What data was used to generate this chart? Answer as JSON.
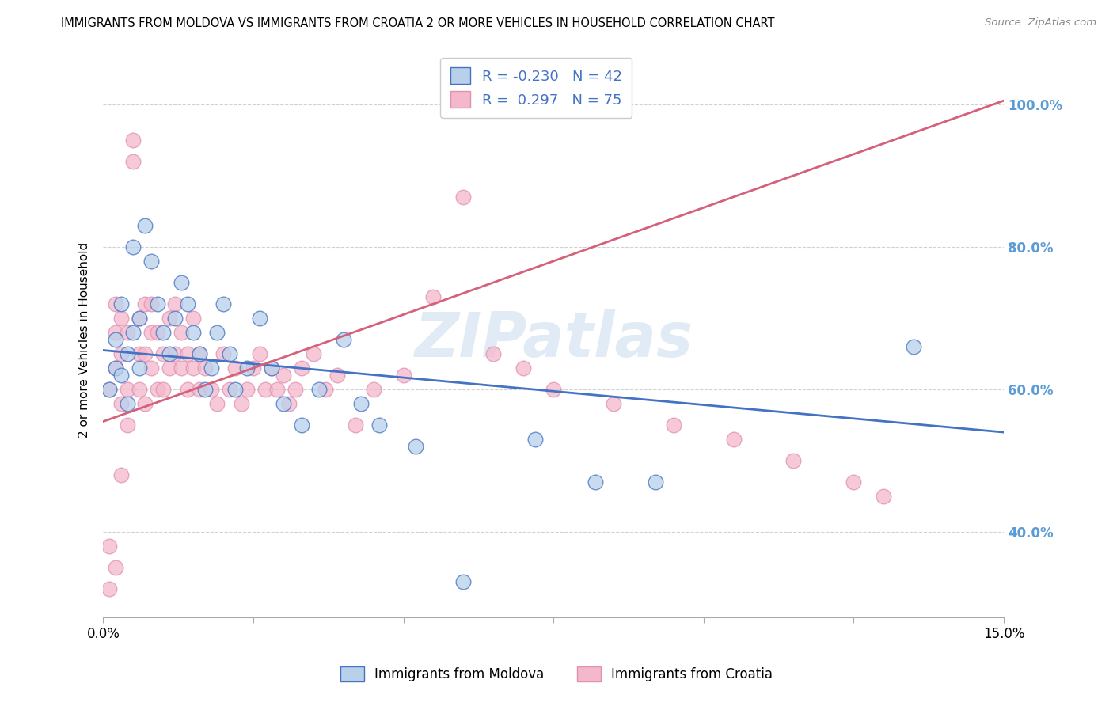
{
  "title": "IMMIGRANTS FROM MOLDOVA VS IMMIGRANTS FROM CROATIA 2 OR MORE VEHICLES IN HOUSEHOLD CORRELATION CHART",
  "source": "Source: ZipAtlas.com",
  "ylabel": "2 or more Vehicles in Household",
  "series1_color": "#b8d0ea",
  "series2_color": "#f5b8cb",
  "trendline1_color": "#4472c4",
  "trendline2_color": "#d4607a",
  "watermark": "ZIPatlas",
  "moldova_N": 42,
  "croatia_N": 75,
  "moldova_R": -0.23,
  "croatia_R": 0.297,
  "legend_text_color": "#4472c4",
  "ytick_color": "#5b9bd5",
  "xlim": [
    0.0,
    0.15
  ],
  "ylim": [
    0.28,
    1.06
  ],
  "mol_trend_y0": 0.655,
  "mol_trend_y1": 0.54,
  "cro_trend_y0": 0.555,
  "cro_trend_y1": 1.005,
  "moldova_x": [
    0.001,
    0.002,
    0.002,
    0.003,
    0.003,
    0.004,
    0.004,
    0.005,
    0.005,
    0.006,
    0.006,
    0.007,
    0.008,
    0.009,
    0.01,
    0.011,
    0.012,
    0.013,
    0.014,
    0.015,
    0.016,
    0.017,
    0.018,
    0.019,
    0.02,
    0.021,
    0.022,
    0.024,
    0.026,
    0.028,
    0.03,
    0.033,
    0.036,
    0.04,
    0.043,
    0.046,
    0.052,
    0.06,
    0.072,
    0.082,
    0.092,
    0.135
  ],
  "moldova_y": [
    0.6,
    0.63,
    0.67,
    0.62,
    0.72,
    0.65,
    0.58,
    0.8,
    0.68,
    0.63,
    0.7,
    0.83,
    0.78,
    0.72,
    0.68,
    0.65,
    0.7,
    0.75,
    0.72,
    0.68,
    0.65,
    0.6,
    0.63,
    0.68,
    0.72,
    0.65,
    0.6,
    0.63,
    0.7,
    0.63,
    0.58,
    0.55,
    0.6,
    0.67,
    0.58,
    0.55,
    0.52,
    0.33,
    0.53,
    0.47,
    0.47,
    0.66
  ],
  "croatia_x": [
    0.001,
    0.001,
    0.002,
    0.002,
    0.002,
    0.003,
    0.003,
    0.003,
    0.004,
    0.004,
    0.005,
    0.005,
    0.006,
    0.006,
    0.006,
    0.007,
    0.007,
    0.007,
    0.008,
    0.008,
    0.009,
    0.009,
    0.01,
    0.01,
    0.011,
    0.011,
    0.012,
    0.012,
    0.013,
    0.013,
    0.014,
    0.014,
    0.015,
    0.015,
    0.016,
    0.016,
    0.017,
    0.018,
    0.019,
    0.02,
    0.021,
    0.022,
    0.023,
    0.024,
    0.025,
    0.026,
    0.027,
    0.028,
    0.029,
    0.03,
    0.031,
    0.032,
    0.033,
    0.035,
    0.037,
    0.039,
    0.042,
    0.045,
    0.05,
    0.055,
    0.06,
    0.065,
    0.07,
    0.075,
    0.085,
    0.095,
    0.105,
    0.115,
    0.125,
    0.13,
    0.001,
    0.002,
    0.003,
    0.004,
    0.008
  ],
  "croatia_y": [
    0.38,
    0.6,
    0.63,
    0.68,
    0.72,
    0.58,
    0.65,
    0.7,
    0.6,
    0.68,
    0.92,
    0.95,
    0.6,
    0.65,
    0.7,
    0.58,
    0.65,
    0.72,
    0.63,
    0.68,
    0.6,
    0.68,
    0.6,
    0.65,
    0.63,
    0.7,
    0.65,
    0.72,
    0.63,
    0.68,
    0.6,
    0.65,
    0.63,
    0.7,
    0.6,
    0.65,
    0.63,
    0.6,
    0.58,
    0.65,
    0.6,
    0.63,
    0.58,
    0.6,
    0.63,
    0.65,
    0.6,
    0.63,
    0.6,
    0.62,
    0.58,
    0.6,
    0.63,
    0.65,
    0.6,
    0.62,
    0.55,
    0.6,
    0.62,
    0.73,
    0.87,
    0.65,
    0.63,
    0.6,
    0.58,
    0.55,
    0.53,
    0.5,
    0.47,
    0.45,
    0.32,
    0.35,
    0.48,
    0.55,
    0.72
  ]
}
